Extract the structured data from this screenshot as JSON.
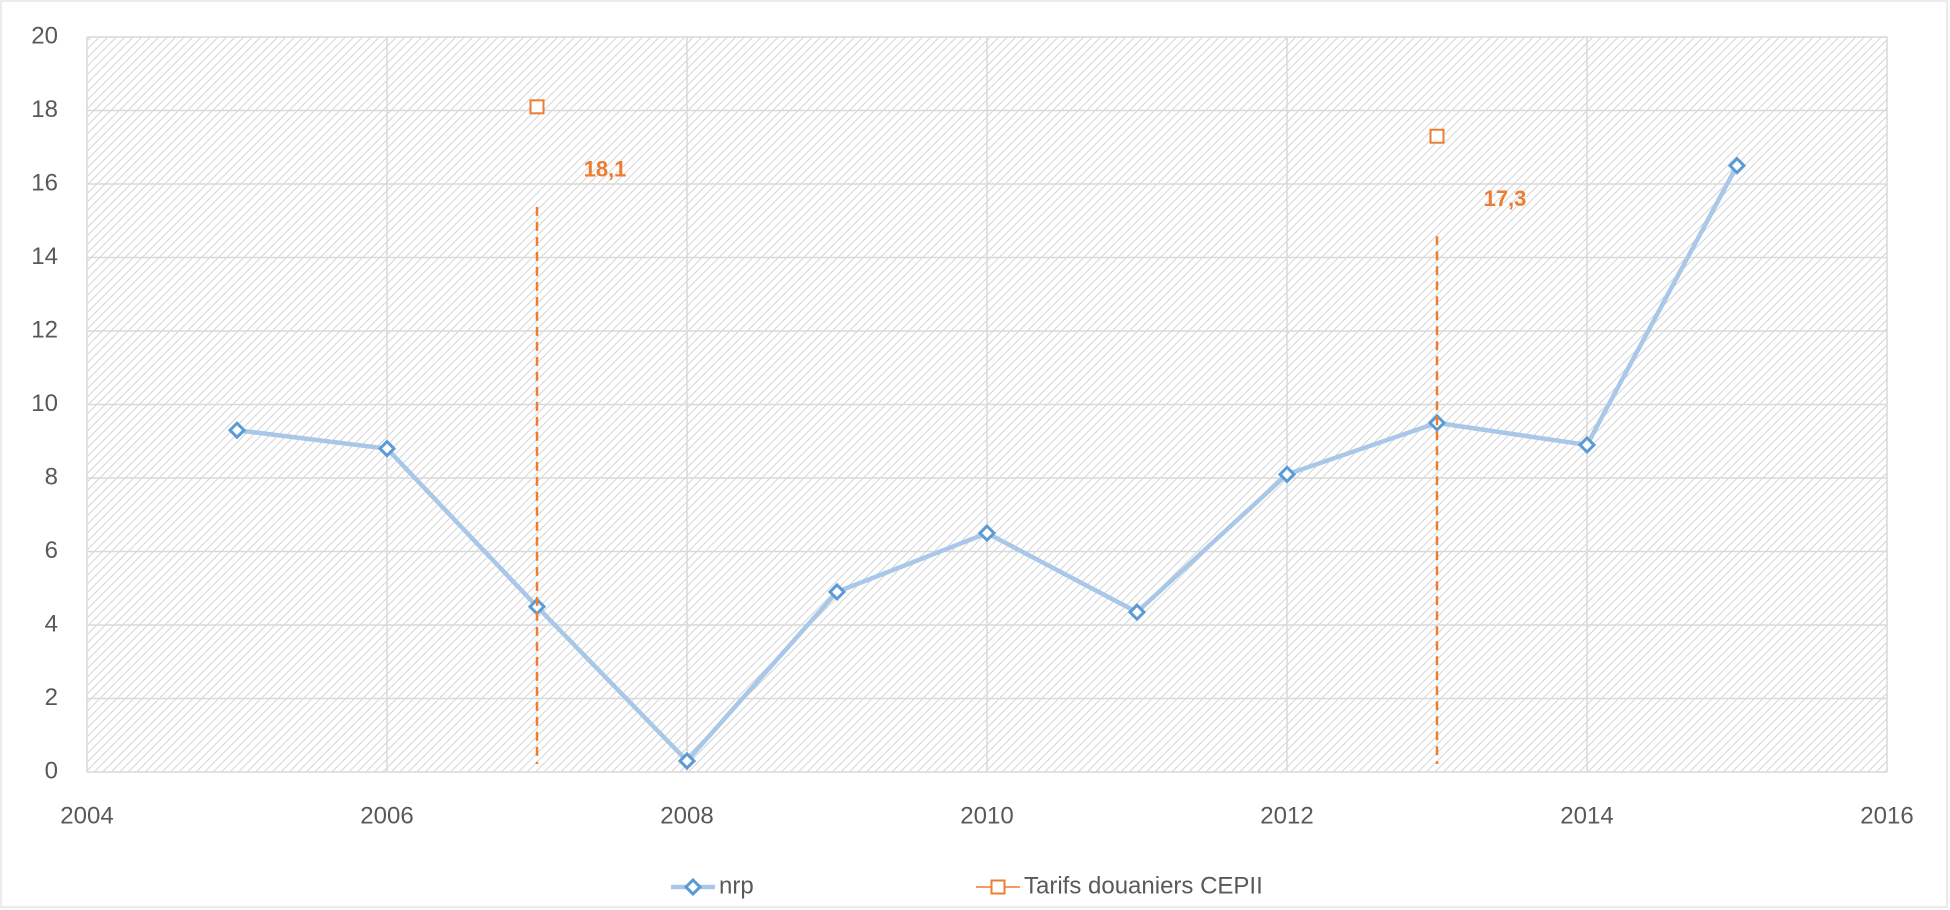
{
  "chart_data": {
    "type": "line",
    "series": [
      {
        "name": "nrp",
        "color": "#5b9bd5",
        "line_color": "#a9c7e8",
        "marker": "diamond",
        "x": [
          2005,
          2006,
          2007,
          2008,
          2009,
          2010,
          2011,
          2012,
          2013,
          2014,
          2015
        ],
        "values": [
          9.3,
          8.8,
          4.5,
          0.3,
          4.9,
          6.5,
          4.35,
          8.1,
          9.5,
          8.9,
          16.5
        ]
      },
      {
        "name": "Tarifs douaniers CEPII",
        "color": "#ed7d31",
        "marker": "square",
        "x": [
          2007,
          2013
        ],
        "values": [
          18.1,
          17.3
        ],
        "value_labels": [
          "18,1",
          "17,3"
        ]
      }
    ],
    "xlim": [
      2004,
      2016
    ],
    "xticks": [
      2004,
      2006,
      2008,
      2010,
      2012,
      2014,
      2016
    ],
    "ylim": [
      0,
      20
    ],
    "yticks": [
      0,
      2,
      4,
      6,
      8,
      10,
      12,
      14,
      16,
      18,
      20
    ],
    "grid": true,
    "legend": "bottom"
  }
}
